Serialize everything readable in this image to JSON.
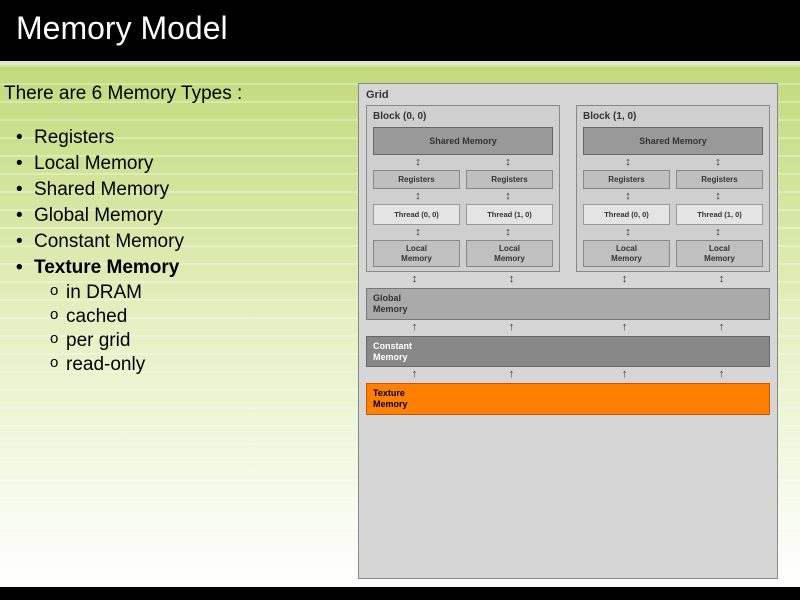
{
  "title": "Memory Model",
  "intro": "There are 6 Memory Types :",
  "bullets": [
    {
      "text": "Registers",
      "bold": false
    },
    {
      "text": "Local Memory",
      "bold": false
    },
    {
      "text": "Shared Memory",
      "bold": false
    },
    {
      "text": "Global Memory",
      "bold": false
    },
    {
      "text": "Constant Memory",
      "bold": false
    },
    {
      "text": "Texture Memory",
      "bold": true
    }
  ],
  "sub_bullets": [
    "in DRAM",
    "cached",
    "per grid",
    "read-only"
  ],
  "diagram": {
    "type": "block-diagram",
    "grid_label": "Grid",
    "blocks": [
      {
        "title": "Block (0, 0)",
        "shared": "Shared Memory",
        "registers": [
          "Registers",
          "Registers"
        ],
        "threads": [
          "Thread (0, 0)",
          "Thread (1, 0)"
        ],
        "locals": [
          "Local\nMemory",
          "Local\nMemory"
        ]
      },
      {
        "title": "Block (1, 0)",
        "shared": "Shared Memory",
        "registers": [
          "Registers",
          "Registers"
        ],
        "threads": [
          "Thread (0, 0)",
          "Thread (1, 0)"
        ],
        "locals": [
          "Local\nMemory",
          "Local\nMemory"
        ]
      }
    ],
    "global_label": "Global\nMemory",
    "constant_label": "Constant\nMemory",
    "texture_label": "Texture\nMemory",
    "colors": {
      "background": "#d6d6d6",
      "block_bg": "#cfcfcf",
      "shared_bg": "#999999",
      "register_bg": "#bfbfbf",
      "thread_bg": "#e4e4e4",
      "local_bg": "#c0c0c0",
      "global_bg": "#aaaaaa",
      "constant_bg": "#888888",
      "texture_bg": "#ff7f00",
      "texture_border": "#cc5500",
      "border": "#888888"
    },
    "arrow_glyph_bidir": "↕",
    "arrow_glyph_down": "↓",
    "arrow_glyph_up": "↑",
    "font_family": "Verdana, Arial, sans-serif",
    "label_fontsize": 10
  },
  "slide_colors": {
    "header_bg": "#000000",
    "header_fg": "#ffffff",
    "gradient_top": "#c2db7b",
    "gradient_mid": "#e8f2c9",
    "gradient_bottom": "#ffffff"
  }
}
